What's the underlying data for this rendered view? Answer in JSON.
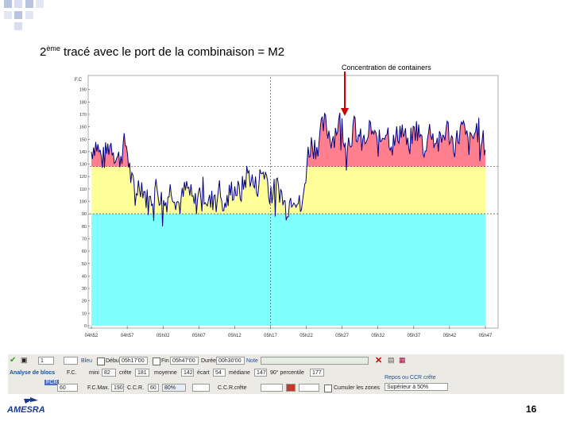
{
  "slide": {
    "title_sup": "ème",
    "title_prefix": "2",
    "title_rest": " tracé avec le port de la combinaison = M2",
    "annotation": "Concentration de containers",
    "page_number": "16",
    "logo_text": "AMESRA"
  },
  "chart_data": {
    "type": "area",
    "ylabel": "F.C",
    "y_ticks": [
      "0",
      "10",
      "20",
      "30",
      "40",
      "50",
      "60",
      "70",
      "80",
      "90",
      "100",
      "110",
      "120",
      "130",
      "140",
      "150",
      "160",
      "170",
      "180",
      "190"
    ],
    "x_ticks": [
      "04h52",
      "04h57",
      "05h02",
      "05h07",
      "05h12",
      "05h17",
      "05h22",
      "05h27",
      "05h32",
      "05h37",
      "05h42",
      "05h47"
    ],
    "ylim": [
      0,
      200
    ],
    "bands": [
      {
        "from": 0,
        "to": 90,
        "color": "#80ffff"
      },
      {
        "from": 90,
        "to": 128,
        "color": "#ffff99"
      },
      {
        "from": 128,
        "to": 200,
        "color": "#ff7f8f"
      }
    ],
    "reference_lines": [
      90,
      128
    ],
    "marker_time": "05h17",
    "segments": [
      {
        "until_index": 1,
        "level": 140
      },
      {
        "until_index": 4,
        "level": 104
      },
      {
        "until_index": 5,
        "level": 118
      },
      {
        "until_index": 5.9,
        "level": 100
      },
      {
        "until_index": 7,
        "level": 158
      },
      {
        "until_index": 11,
        "level": 152
      }
    ],
    "peak_value": 178,
    "colors": {
      "line": "#000080",
      "fill": "#ffff99",
      "accent": "#cc0000"
    }
  },
  "toolbar": {
    "row1": {
      "spin_value": "1",
      "color_label": "Bleu",
      "debut_label": "Début",
      "debut_value": "05h17'00",
      "fin_label": "Fin",
      "fin_value": "05h47'00",
      "duree_label": "Durée",
      "duree_value": "00h30'00",
      "note_label": "Note"
    },
    "row2": {
      "section_label": "Analyse de blocs",
      "fc_label": "F.C.",
      "mini_label": "mini",
      "mini_value": "82",
      "crete_label": "crête",
      "crete_value": "181",
      "moyenne_label": "moyenne",
      "moyenne_value": "142",
      "ecart_label": "écart",
      "ecart_value": "54",
      "mediane_label": "médiane",
      "mediane_value": "147",
      "percentile_label": "90° percentile",
      "percentile_value": "177",
      "right_title": "Repos ou CCR crête"
    },
    "row3": {
      "fcr_label": "FCR",
      "fcr_value": "60",
      "fcmax_label": "F.C.Max.",
      "fcmax_value": "190",
      "ccr_label": "C.C.R.",
      "ccr_value": "60",
      "pct_value": "80%",
      "ccr_crete_label": "C.C.R.crête",
      "ccr_crete_value": "",
      "cumul_label": "Cumuler les zones",
      "superieur_text": "Supérieur à 50%"
    }
  }
}
